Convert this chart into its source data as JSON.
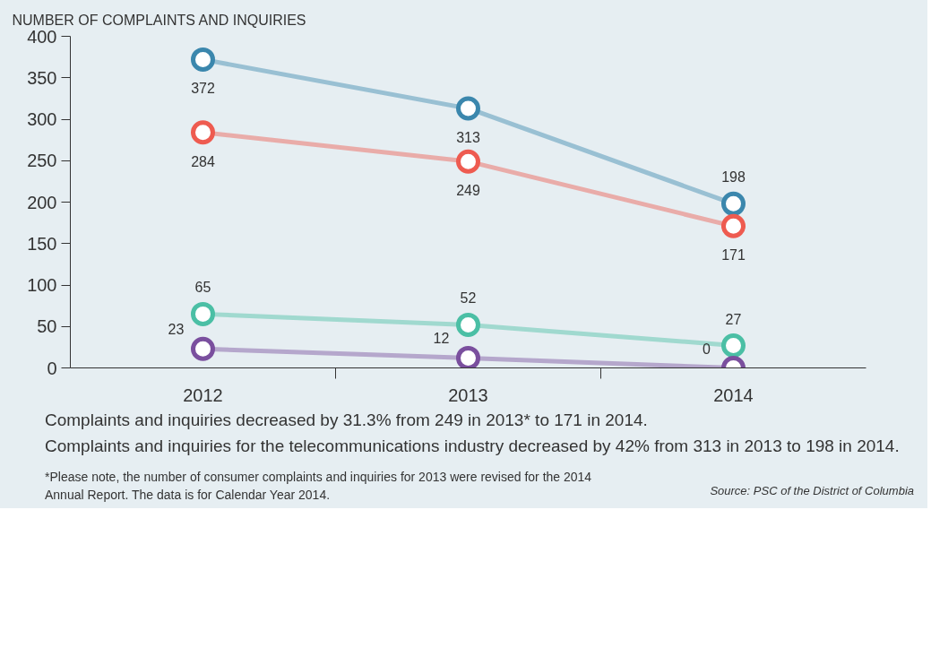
{
  "chart_data": {
    "type": "line",
    "ylabel": "NUMBER OF COMPLAINTS AND INQUIRIES",
    "categories": [
      "2012",
      "2013",
      "2014"
    ],
    "series": [
      {
        "color": "#3b87ad",
        "values": [
          372,
          313,
          198
        ]
      },
      {
        "color": "#ee5b50",
        "values": [
          284,
          249,
          171
        ]
      },
      {
        "color": "#4bbfa5",
        "values": [
          65,
          52,
          27
        ]
      },
      {
        "color": "#7a4f9e",
        "values": [
          23,
          12,
          0
        ]
      }
    ],
    "ylim": [
      0,
      400
    ],
    "yticks": [
      0,
      50,
      100,
      150,
      200,
      250,
      300,
      350,
      400
    ],
    "marker": "circle",
    "line_style": "solid",
    "grid": false,
    "data_labels": true,
    "annotations": [
      "Complaints and inquiries decreased by 31.3% from  249 in 2013* to 171 in 2014.",
      "Complaints and inquiries for the telecommunications industry decreased by 42% from 313 in 2013 to 198 in 2014.",
      "*Please note, the number of consumer complaints and inquiries for 2013 were revised for the 2014 Annual Report. The data is for Calendar Year 2014.",
      "Source: PSC of the District of Columbia"
    ]
  }
}
